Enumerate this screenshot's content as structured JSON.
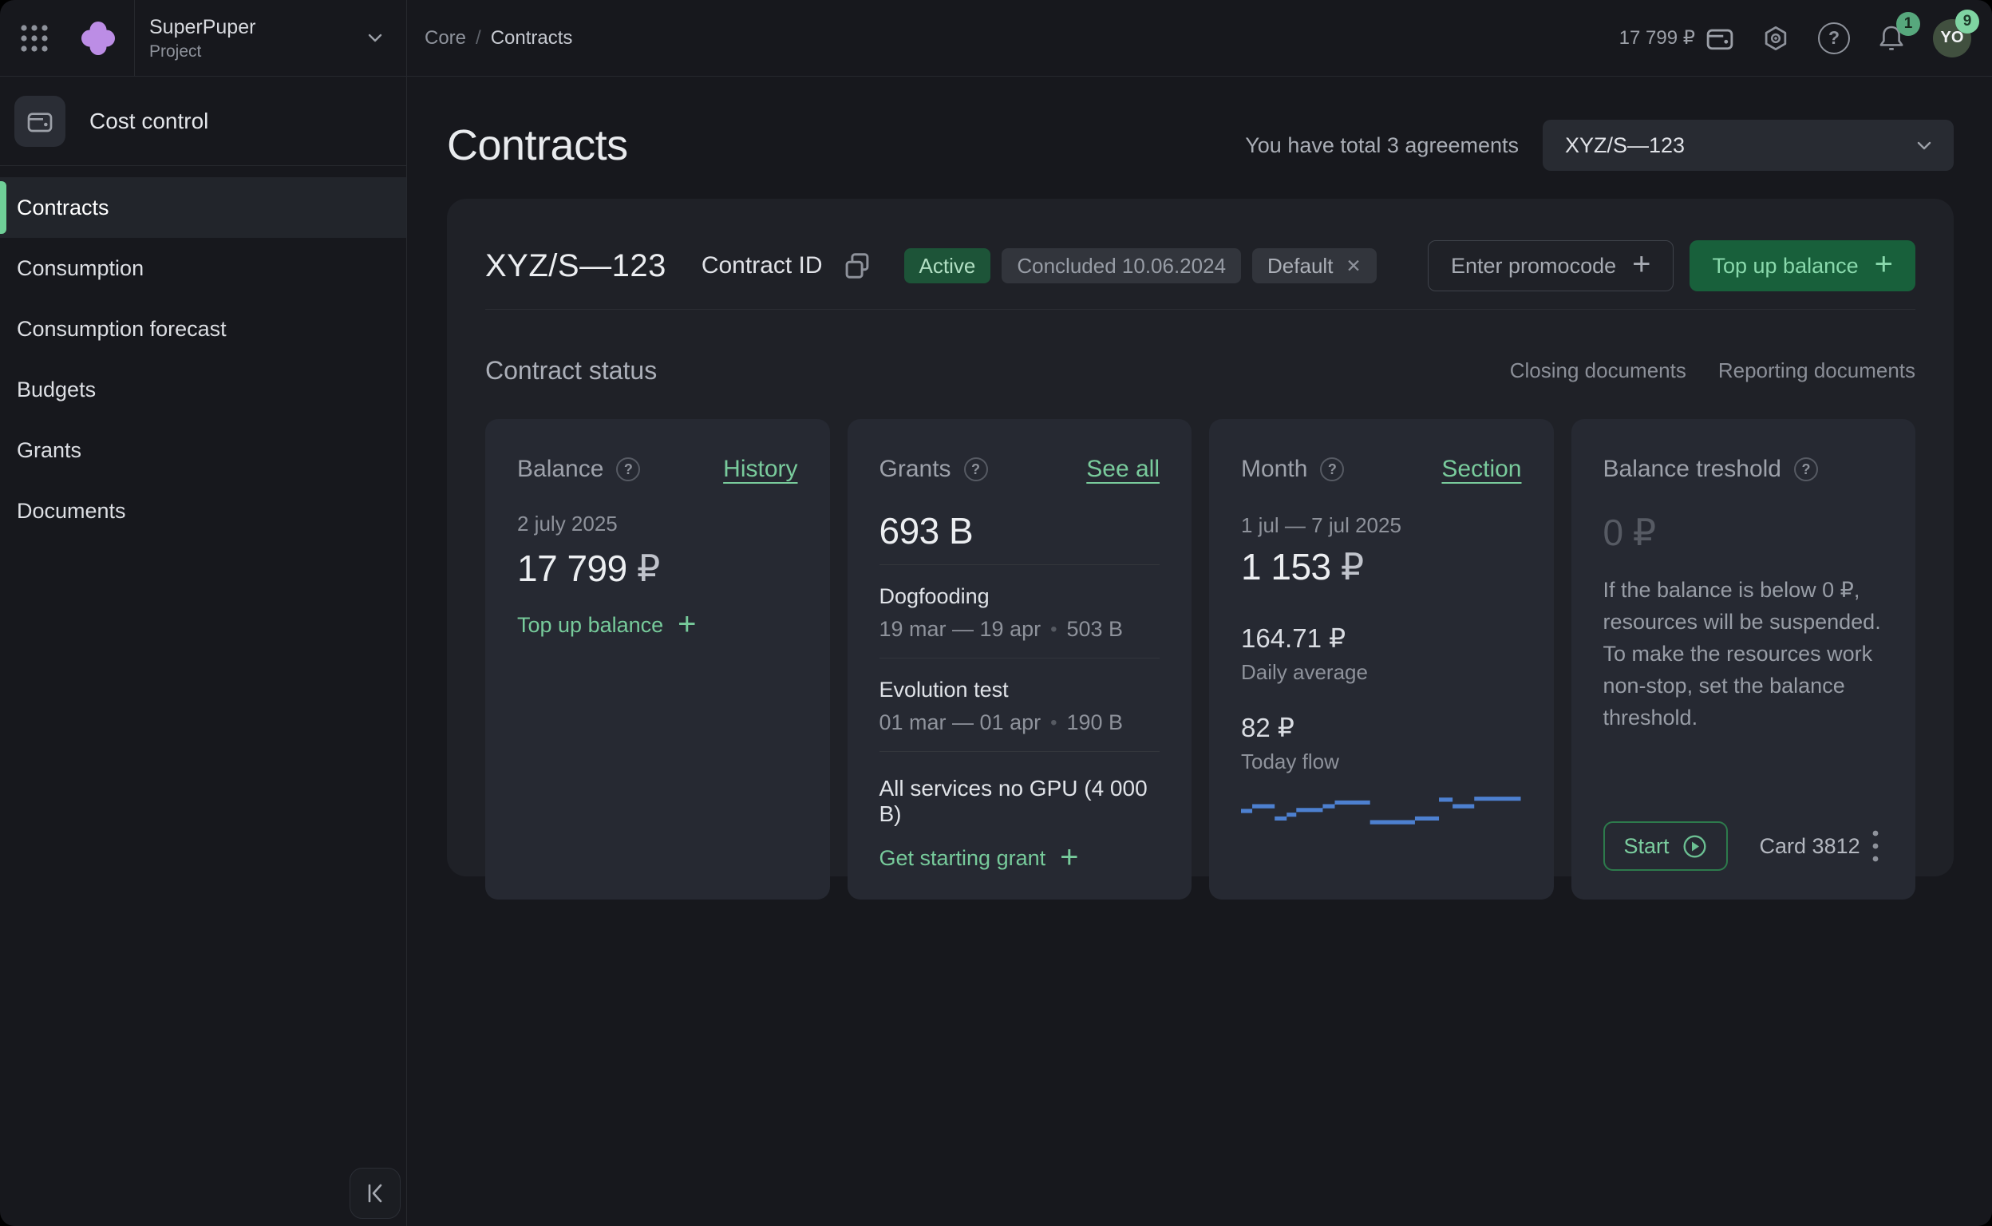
{
  "colors": {
    "accent_green": "#6fcf97",
    "link_green": "#79cb9c",
    "status_badge_green": "#1d5438",
    "button_green": "#18603b",
    "sparkline_blue": "#4d80d0",
    "logo_purple": "#bc8de5"
  },
  "header": {
    "project_name": "SuperPuper",
    "project_type": "Project",
    "breadcrumb": {
      "root": "Core",
      "separator": "/",
      "current": "Contracts"
    },
    "wallet_balance": "17 799 ₽",
    "notifications_badge": "1",
    "avatar_initials": "YO",
    "avatar_badge": "9"
  },
  "sidebar": {
    "section_title": "Cost control",
    "items": [
      {
        "label": "Contracts",
        "active": true
      },
      {
        "label": "Consumption",
        "active": false
      },
      {
        "label": "Consumption forecast",
        "active": false
      },
      {
        "label": "Budgets",
        "active": false
      },
      {
        "label": "Grants",
        "active": false
      },
      {
        "label": "Documents",
        "active": false
      }
    ]
  },
  "main": {
    "page_title": "Contracts",
    "agreements_note": "You have total 3 agreements",
    "contract_selector": "XYZ/S—123",
    "contract": {
      "id": "XYZ/S—123",
      "id_label": "Contract ID",
      "status_badge": "Active",
      "concluded_badge": "Concluded 10.06.2024",
      "default_badge": "Default",
      "promocode_button": "Enter promocode",
      "topup_button": "Top up balance",
      "status_heading": "Contract status",
      "closing_docs_link": "Closing documents",
      "reporting_docs_link": "Reporting documents"
    },
    "cards": {
      "balance": {
        "title": "Balance",
        "link": "History",
        "date": "2 july 2025",
        "amount": "17 799",
        "currency": "₽",
        "action": "Top up balance"
      },
      "grants": {
        "title": "Grants",
        "link": "See all",
        "total": "693 B",
        "items": [
          {
            "name": "Dogfooding",
            "period": "19 mar — 19 apr",
            "amount": "503 B"
          },
          {
            "name": "Evolution test",
            "period": "01 mar — 01 apr",
            "amount": "190 B"
          }
        ],
        "footer": "All services no GPU (4 000 B)",
        "action": "Get starting grant"
      },
      "month": {
        "title": "Month",
        "link": "Section",
        "period": "1 jul — 7 jul 2025",
        "amount": "1 153",
        "currency": "₽",
        "daily_average": "164.71 ₽",
        "daily_average_label": "Daily average",
        "today": "82 ₽",
        "today_label": "Today flow",
        "chart": {
          "type": "step-line",
          "color": "#4d80d0",
          "unit": "relative-flow",
          "segments": [
            [
              0,
              14,
              17
            ],
            [
              14,
              42,
              12
            ],
            [
              42,
              57,
              25
            ],
            [
              57,
              69,
              21
            ],
            [
              69,
              102,
              16
            ],
            [
              102,
              117,
              12
            ],
            [
              117,
              161,
              8
            ],
            [
              161,
              217,
              29
            ],
            [
              217,
              247,
              25
            ],
            [
              247,
              264,
              5
            ],
            [
              264,
              291,
              12
            ],
            [
              291,
              349,
              4
            ]
          ]
        }
      },
      "threshold": {
        "title": "Balance treshold",
        "amount": "0",
        "currency": "₽",
        "description": "If the balance is below 0 ₽, resources will be suspended. To make the resources work non-stop, set the balance threshold.",
        "start_button": "Start",
        "card_label": "Card 3812"
      }
    }
  },
  "icons": {
    "question": "?",
    "close": "✕",
    "plus": "+",
    "dot": "•"
  }
}
